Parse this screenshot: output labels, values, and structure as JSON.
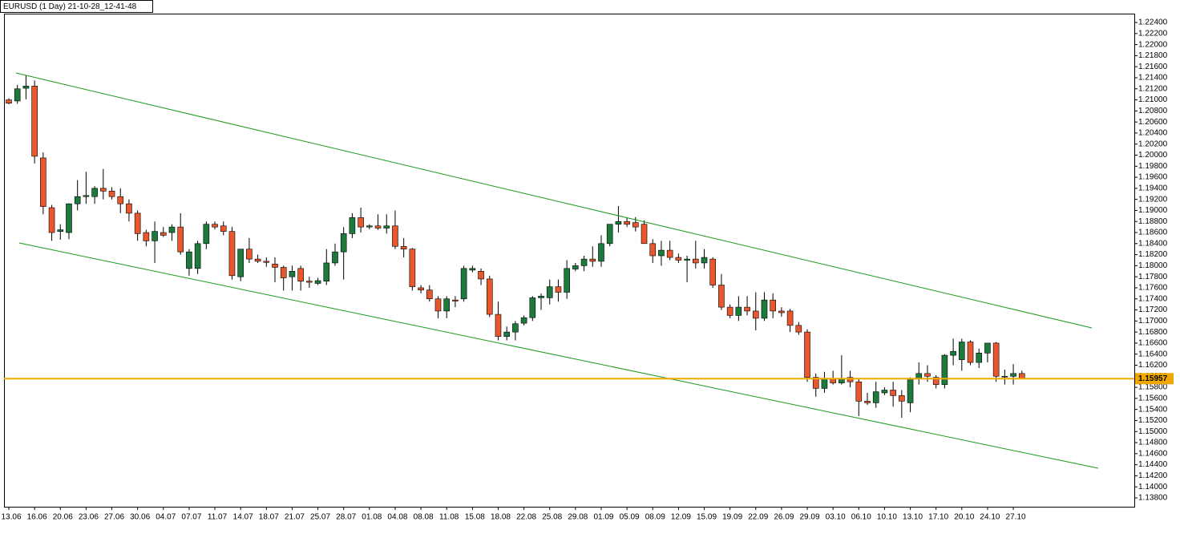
{
  "chart_data": {
    "type": "candlestick",
    "title": "EURUSD (1 Day) 21-10-28_12-41-48",
    "categories": [
      "13.06",
      null,
      null,
      "16.06",
      null,
      null,
      "20.06",
      null,
      null,
      "23.06",
      null,
      null,
      "27.06",
      null,
      null,
      "30.06",
      null,
      null,
      "04.07",
      null,
      null,
      "07.07",
      null,
      null,
      "11.07",
      null,
      null,
      "14.07",
      null,
      null,
      "18.07",
      null,
      null,
      "21.07",
      null,
      null,
      "25.07",
      null,
      null,
      "28.07",
      null,
      null,
      "01.08",
      null,
      null,
      "04.08",
      null,
      null,
      "08.08",
      null,
      null,
      "11.08",
      null,
      null,
      "15.08",
      null,
      null,
      "18.08",
      null,
      null,
      "22.08",
      null,
      null,
      "25.08",
      null,
      null,
      "29.08",
      null,
      null,
      "01.09",
      null,
      null,
      "05.09",
      null,
      null,
      "08.09",
      null,
      null,
      "12.09",
      null,
      null,
      "15.09",
      null,
      null,
      "19.09",
      null,
      null,
      "22.09",
      null,
      null,
      "26.09",
      null,
      null,
      "29.09",
      null,
      null,
      "03.10",
      null,
      null,
      "06.10",
      null,
      null,
      "10.10",
      null,
      null,
      "13.10",
      null,
      null,
      "17.10",
      null,
      null,
      "20.10",
      null,
      null,
      "24.10",
      null,
      null,
      "27.10",
      null
    ],
    "open": [
      1.21,
      1.2098,
      1.2121,
      1.2125,
      1.1995,
      1.1905,
      1.1862,
      1.186,
      1.1912,
      1.1925,
      1.1925,
      1.194,
      1.1935,
      1.1925,
      1.1912,
      1.1895,
      1.186,
      1.1845,
      1.186,
      1.186,
      1.187,
      1.1795,
      1.1795,
      1.184,
      1.1875,
      1.1872,
      1.1862,
      1.178,
      1.183,
      1.1812,
      1.1808,
      1.1803,
      1.1797,
      1.178,
      1.1795,
      1.1772,
      1.1768,
      1.1772,
      1.1805,
      1.1825,
      1.1858,
      1.1887,
      1.187,
      1.1872,
      1.1868,
      1.1872,
      1.1835,
      1.183,
      1.176,
      1.1756,
      1.174,
      1.1718,
      1.1738,
      1.174,
      1.1792,
      1.179,
      1.1776,
      1.1712,
      1.1672,
      1.168,
      1.1696,
      1.1706,
      1.1742,
      1.1742,
      1.1762,
      1.1752,
      1.1794,
      1.18,
      1.1812,
      1.1808,
      1.184,
      1.1875,
      1.188,
      1.1878,
      1.1875,
      1.184,
      1.1818,
      1.1828,
      1.1815,
      1.181,
      1.1812,
      1.1805,
      1.1812,
      1.1765,
      1.1725,
      1.171,
      1.1725,
      1.1718,
      1.1705,
      1.1738,
      1.1718,
      1.1718,
      1.1692,
      1.168,
      1.1598,
      1.1578,
      1.1595,
      1.1588,
      1.1598,
      1.159,
      1.1555,
      1.1552,
      1.157,
      1.1575,
      1.1565,
      1.1552,
      1.1595,
      1.1605,
      1.1598,
      1.1585,
      1.1638,
      1.163,
      1.1662,
      1.1625,
      1.1642,
      1.166,
      1.16,
      1.16,
      1.1605
    ],
    "high": [
      1.2103,
      1.2127,
      1.2144,
      1.2135,
      1.2005,
      1.191,
      1.1875,
      1.1913,
      1.1955,
      1.197,
      1.1944,
      1.1975,
      1.1942,
      1.194,
      1.192,
      1.19,
      1.1865,
      1.188,
      1.187,
      1.1875,
      1.1895,
      1.183,
      1.1845,
      1.188,
      1.188,
      1.188,
      1.187,
      1.183,
      1.185,
      1.182,
      1.1815,
      1.1815,
      1.18,
      1.18,
      1.18,
      1.178,
      1.1778,
      1.183,
      1.184,
      1.187,
      1.1895,
      1.1905,
      1.1875,
      1.1893,
      1.1893,
      1.19,
      1.185,
      1.1832,
      1.1765,
      1.1765,
      1.1745,
      1.1745,
      1.1745,
      1.18,
      1.18,
      1.1795,
      1.1782,
      1.1735,
      1.169,
      1.17,
      1.171,
      1.1745,
      1.175,
      1.1775,
      1.1775,
      1.181,
      1.1805,
      1.1818,
      1.1835,
      1.1855,
      1.1875,
      1.1908,
      1.1887,
      1.1888,
      1.1882,
      1.1848,
      1.1845,
      1.1845,
      1.1822,
      1.1818,
      1.1845,
      1.183,
      1.1815,
      1.1785,
      1.173,
      1.1745,
      1.1745,
      1.1752,
      1.1752,
      1.175,
      1.1725,
      1.1722,
      1.1698,
      1.1685,
      1.1605,
      1.1608,
      1.161,
      1.1638,
      1.161,
      1.1595,
      1.157,
      1.159,
      1.158,
      1.159,
      1.1575,
      1.1598,
      1.1625,
      1.162,
      1.1602,
      1.164,
      1.1668,
      1.1668,
      1.1665,
      1.165,
      1.166,
      1.1662,
      1.1612,
      1.1622,
      1.161
    ],
    "low": [
      1.2092,
      1.2093,
      1.2101,
      1.1985,
      1.1893,
      1.1845,
      1.1847,
      1.1848,
      1.19,
      1.1912,
      1.1912,
      1.192,
      1.192,
      1.1895,
      1.188,
      1.1845,
      1.1835,
      1.1805,
      1.1852,
      1.1845,
      1.182,
      1.1782,
      1.1785,
      1.183,
      1.1866,
      1.1855,
      1.1775,
      1.1772,
      1.1805,
      1.1805,
      1.1798,
      1.177,
      1.1755,
      1.1755,
      1.1755,
      1.176,
      1.1765,
      1.1765,
      1.18,
      1.1775,
      1.185,
      1.186,
      1.1866,
      1.1865,
      1.1858,
      1.183,
      1.1815,
      1.1755,
      1.175,
      1.1735,
      1.1705,
      1.1705,
      1.1725,
      1.1735,
      1.1788,
      1.1765,
      1.1707,
      1.1665,
      1.1665,
      1.1665,
      1.1692,
      1.17,
      1.172,
      1.173,
      1.1735,
      1.174,
      1.179,
      1.179,
      1.1798,
      1.1798,
      1.1835,
      1.186,
      1.187,
      1.1862,
      1.184,
      1.1805,
      1.18,
      1.181,
      1.1805,
      1.177,
      1.1795,
      1.1795,
      1.176,
      1.172,
      1.1705,
      1.17,
      1.171,
      1.1683,
      1.17,
      1.1705,
      1.1708,
      1.168,
      1.1675,
      1.159,
      1.1563,
      1.157,
      1.1585,
      1.1585,
      1.158,
      1.1528,
      1.1548,
      1.1543,
      1.1566,
      1.1545,
      1.1525,
      1.1535,
      1.1585,
      1.159,
      1.1578,
      1.1578,
      1.162,
      1.161,
      1.162,
      1.1615,
      1.1625,
      1.159,
      1.1585,
      1.1585,
      1.1595
    ],
    "close": [
      1.2094,
      1.212,
      1.2125,
      1.1998,
      1.1907,
      1.186,
      1.1865,
      1.1912,
      1.1925,
      1.1927,
      1.194,
      1.1935,
      1.1925,
      1.1912,
      1.1895,
      1.1858,
      1.1845,
      1.1862,
      1.1855,
      1.187,
      1.1825,
      1.1825,
      1.184,
      1.1875,
      1.187,
      1.1862,
      1.1782,
      1.183,
      1.1812,
      1.1808,
      1.1806,
      1.1797,
      1.1778,
      1.179,
      1.1772,
      1.177,
      1.1773,
      1.1805,
      1.1825,
      1.1858,
      1.1887,
      1.187,
      1.1872,
      1.1868,
      1.1872,
      1.1835,
      1.183,
      1.1762,
      1.1756,
      1.174,
      1.1718,
      1.174,
      1.1736,
      1.1795,
      1.1795,
      1.1776,
      1.1712,
      1.1672,
      1.168,
      1.1695,
      1.1706,
      1.1742,
      1.1745,
      1.1762,
      1.1752,
      1.1795,
      1.18,
      1.1812,
      1.1808,
      1.184,
      1.1875,
      1.188,
      1.1875,
      1.187,
      1.184,
      1.1818,
      1.1828,
      1.1815,
      1.181,
      1.1812,
      1.1805,
      1.1815,
      1.1765,
      1.1725,
      1.171,
      1.1725,
      1.1718,
      1.1705,
      1.1738,
      1.1718,
      1.1715,
      1.1692,
      1.168,
      1.1598,
      1.1578,
      1.1595,
      1.1588,
      1.1595,
      1.159,
      1.1555,
      1.1552,
      1.1572,
      1.1575,
      1.1565,
      1.1555,
      1.1595,
      1.1605,
      1.16,
      1.1585,
      1.1638,
      1.1645,
      1.1662,
      1.1625,
      1.1642,
      1.166,
      1.16,
      1.16,
      1.1605,
      1.1596
    ],
    "up_color": "#1d7a3d",
    "down_color": "#e8582c",
    "price_line": 1.15957,
    "price_line_color": "#f0a800",
    "ylim": [
      1.1364,
      1.2256
    ],
    "yticks": [
      {
        "value": 1.138,
        "label": "1.13800"
      },
      {
        "value": 1.14,
        "label": "1.14000"
      },
      {
        "value": 1.142,
        "label": "1.14200"
      },
      {
        "value": 1.144,
        "label": "1.14400"
      },
      {
        "value": 1.146,
        "label": "1.14600"
      },
      {
        "value": 1.148,
        "label": "1.14800"
      },
      {
        "value": 1.15,
        "label": "1.15000"
      },
      {
        "value": 1.152,
        "label": "1.15200"
      },
      {
        "value": 1.154,
        "label": "1.15400"
      },
      {
        "value": 1.156,
        "label": "1.15600"
      },
      {
        "value": 1.158,
        "label": "1.15800"
      },
      {
        "value": 1.16,
        "label": "1.16000"
      },
      {
        "value": 1.162,
        "label": "1.16200"
      },
      {
        "value": 1.164,
        "label": "1.16400"
      },
      {
        "value": 1.166,
        "label": "1.16600"
      },
      {
        "value": 1.168,
        "label": "1.16800"
      },
      {
        "value": 1.17,
        "label": "1.17000"
      },
      {
        "value": 1.172,
        "label": "1.17200"
      },
      {
        "value": 1.174,
        "label": "1.17400"
      },
      {
        "value": 1.176,
        "label": "1.17600"
      },
      {
        "value": 1.178,
        "label": "1.17800"
      },
      {
        "value": 1.18,
        "label": "1.18000"
      },
      {
        "value": 1.182,
        "label": "1.18200"
      },
      {
        "value": 1.184,
        "label": "1.18400"
      },
      {
        "value": 1.186,
        "label": "1.18600"
      },
      {
        "value": 1.188,
        "label": "1.18800"
      },
      {
        "value": 1.19,
        "label": "1.19000"
      },
      {
        "value": 1.192,
        "label": "1.19200"
      },
      {
        "value": 1.194,
        "label": "1.19400"
      },
      {
        "value": 1.196,
        "label": "1.19600"
      },
      {
        "value": 1.198,
        "label": "1.19800"
      },
      {
        "value": 1.2,
        "label": "1.20000"
      },
      {
        "value": 1.202,
        "label": "1.20200"
      },
      {
        "value": 1.204,
        "label": "1.20400"
      },
      {
        "value": 1.206,
        "label": "1.20600"
      },
      {
        "value": 1.208,
        "label": "1.20800"
      },
      {
        "value": 1.21,
        "label": "1.21000"
      },
      {
        "value": 1.212,
        "label": "1.21200"
      },
      {
        "value": 1.214,
        "label": "1.21400"
      },
      {
        "value": 1.216,
        "label": "1.21600"
      },
      {
        "value": 1.218,
        "label": "1.21800"
      },
      {
        "value": 1.22,
        "label": "1.22000"
      },
      {
        "value": 1.222,
        "label": "1.22200"
      },
      {
        "value": 1.224,
        "label": "1.22400"
      }
    ]
  }
}
